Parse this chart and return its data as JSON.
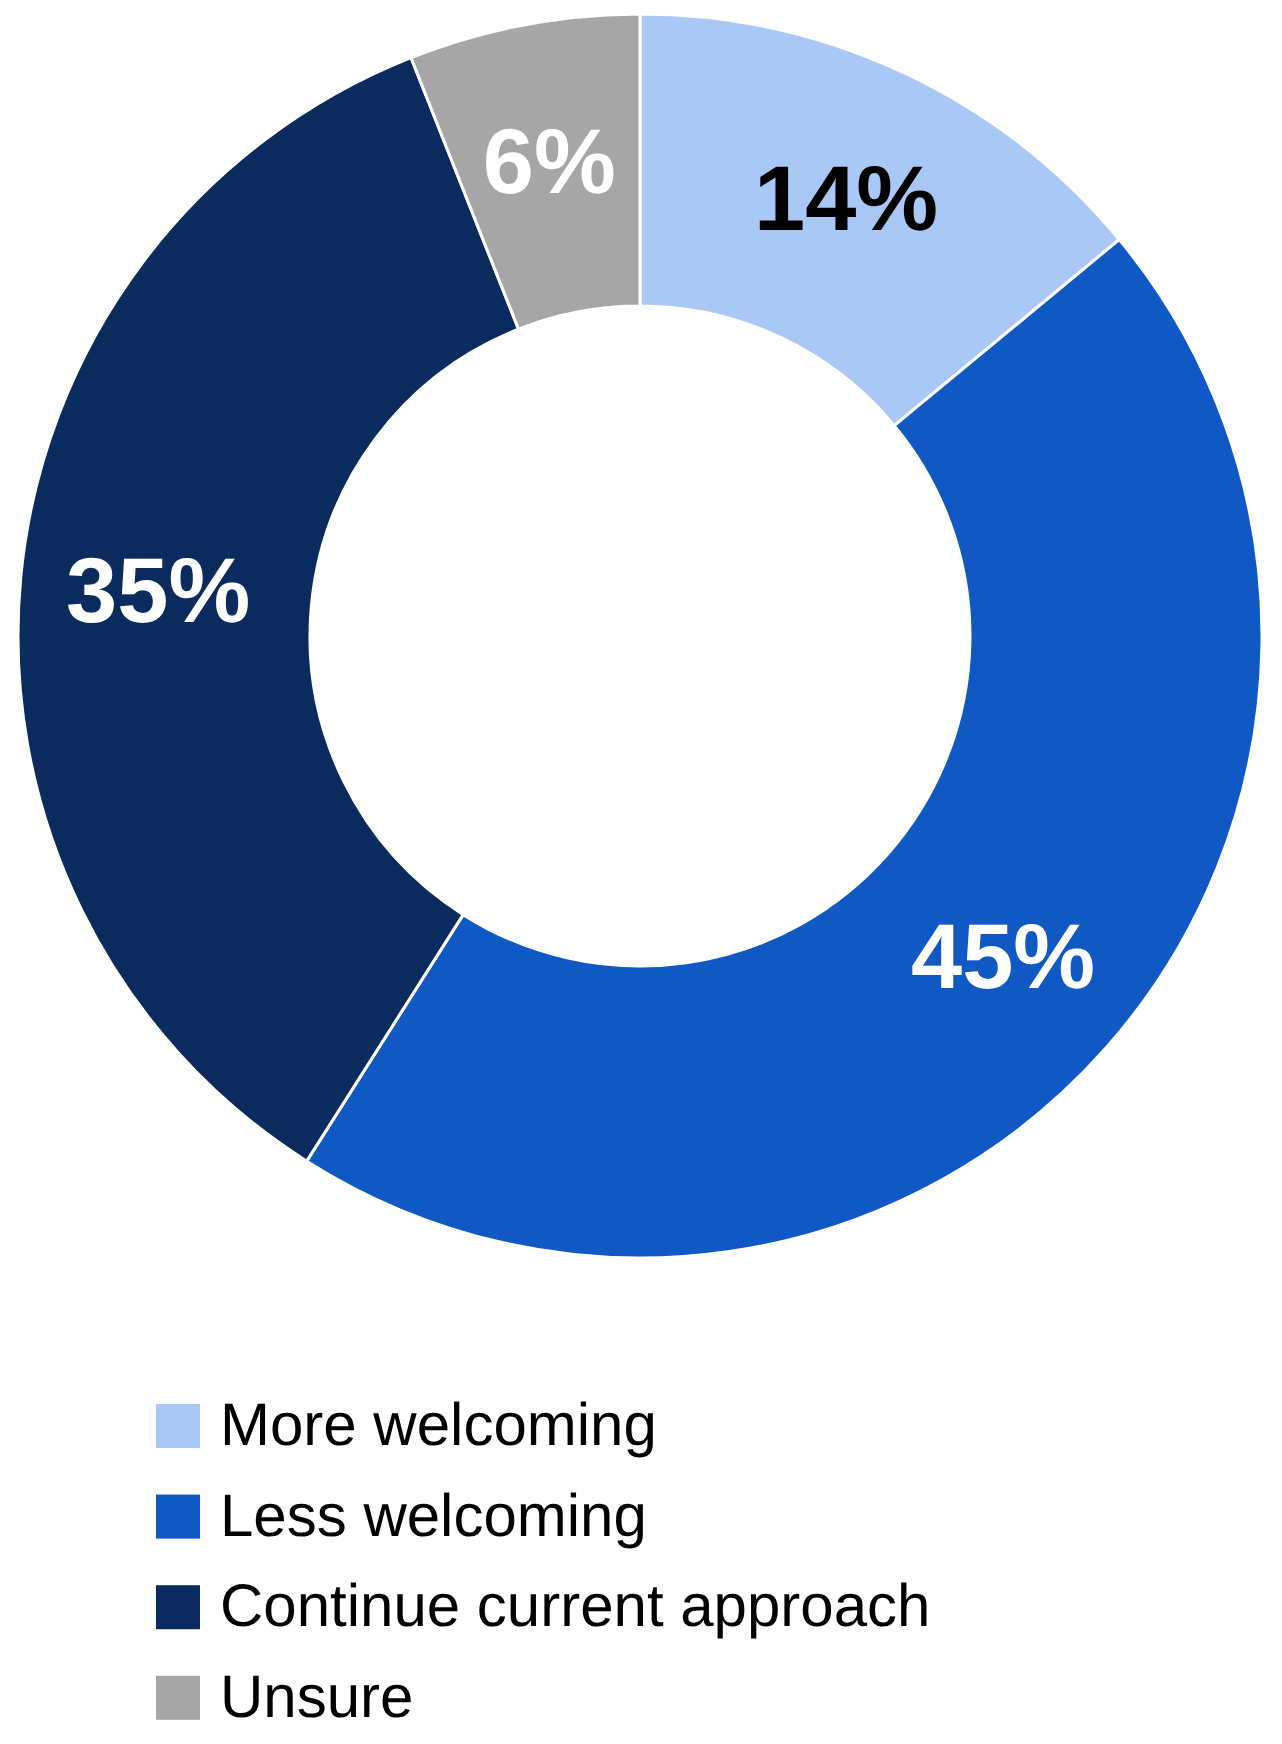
{
  "chart_data": {
    "type": "donut",
    "categories": [
      "More welcoming",
      "Less welcoming",
      "Continue current approach",
      "Unsure"
    ],
    "values": [
      14,
      45,
      35,
      6
    ],
    "colors": [
      "#a9c8f5",
      "#1058c4",
      "#0b2a5e",
      "#a6a6a6"
    ],
    "value_labels": [
      "14%",
      "45%",
      "35%",
      "6%"
    ],
    "legend": "bottom"
  }
}
